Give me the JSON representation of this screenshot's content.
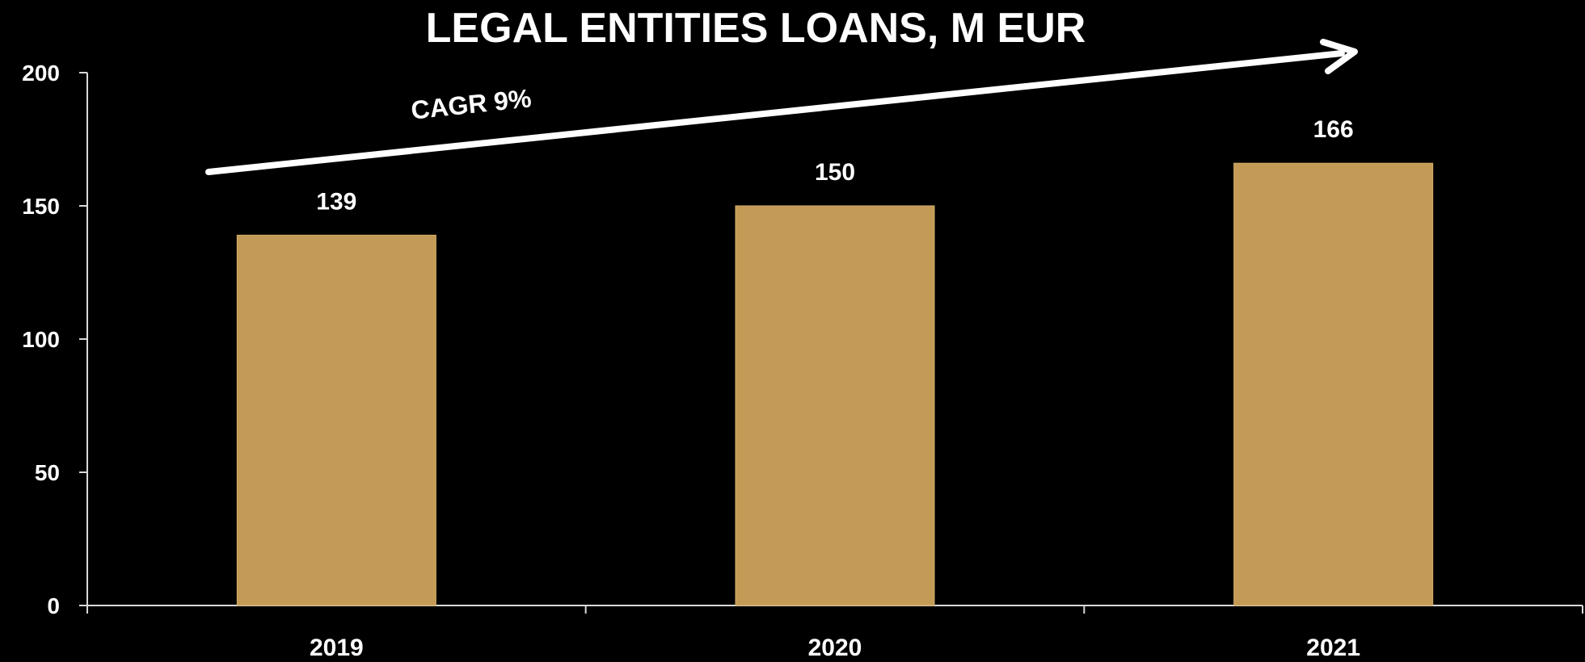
{
  "chart_data": {
    "type": "bar",
    "title": "LEGAL ENTITIES LOANS, M EUR",
    "categories": [
      "2019",
      "2020",
      "2021"
    ],
    "values": [
      139,
      150,
      166
    ],
    "data_labels": [
      "139",
      "150",
      "166"
    ],
    "xlabel": "",
    "ylabel": "",
    "ylim": [
      0,
      200
    ],
    "yticks": [
      0,
      50,
      100,
      150,
      200
    ],
    "ytick_labels": [
      "0",
      "50",
      "100",
      "150",
      "200"
    ],
    "grid": false,
    "legend": "none",
    "annotation": {
      "text": "CAGR 9%",
      "arrow": "trend arrow rising from left to right"
    },
    "colors": {
      "background": "#000000",
      "bar": "#C49A57",
      "bar_edge": "#d6b06a",
      "axis": "#d9d9d9",
      "text": "#ffffff",
      "arrow": "#ffffff"
    }
  }
}
